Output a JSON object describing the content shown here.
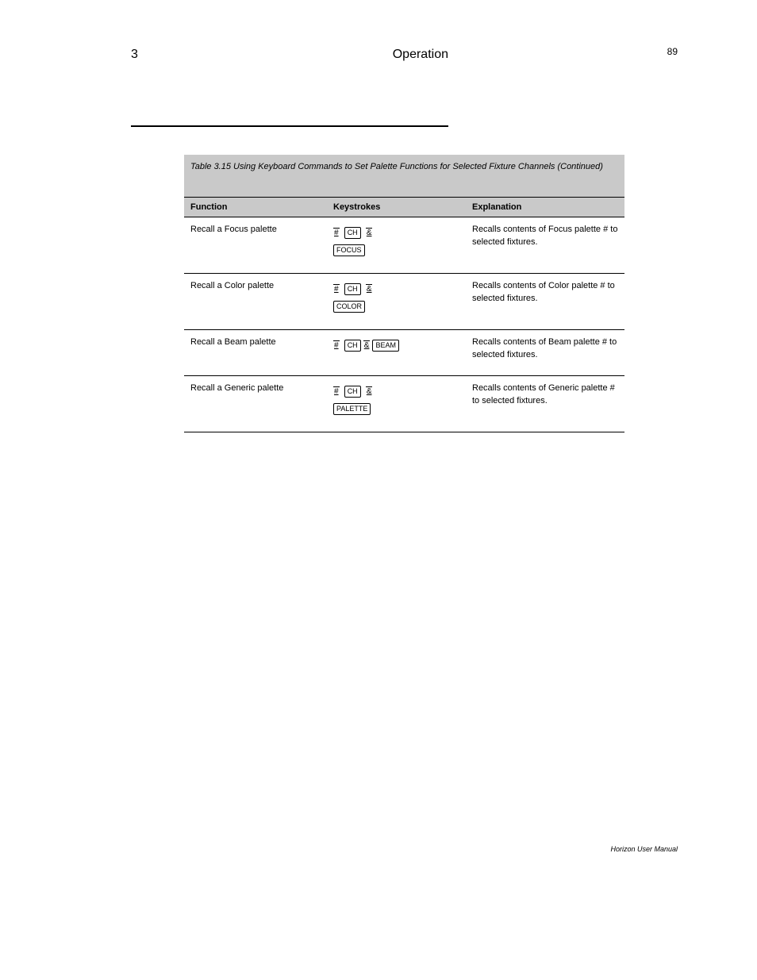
{
  "page": {
    "top_page_num": "89",
    "chapter_num": "3",
    "chapter_name": "Operation"
  },
  "table": {
    "caption": "Table 3.15  Using Keyboard Commands to Set Palette Functions for Selected Fixture Channels (Continued)",
    "columns": [
      "Function",
      "Keystrokes",
      "Explanation"
    ],
    "rows": [
      {
        "func": "Recall a Focus palette",
        "keys_html": "<span class='keyline'><span class='char'>#</span>&nbsp;&nbsp;<span class='key'>CH</span>&nbsp;&nbsp;<span class='char'>&amp;</span></span><br><span class='keyline'><span class='key'>FOCUS</span></span>",
        "exp": "Recalls contents of Focus palette # to selected fixtures."
      },
      {
        "func": "Recall a Color palette",
        "keys_html": "<span class='keyline'><span class='char'>#</span>&nbsp;&nbsp;<span class='key'>CH</span>&nbsp;&nbsp;<span class='char'>&amp;</span></span><br><span class='keyline'><span class='key'>COLOR</span></span>",
        "exp": "Recalls contents of Color palette # to selected fixtures."
      },
      {
        "func": "Recall a Beam palette",
        "keys_html": "<span class='keyline'><span class='char'>#</span>&nbsp;&nbsp;<span class='key'>CH</span>&nbsp;<span class='char'>&amp;</span>&nbsp;<span class='key'>BEAM</span></span>",
        "exp": "Recalls contents of Beam palette # to selected fixtures."
      },
      {
        "func": "Recall a Generic palette",
        "keys_html": "<span class='keyline'><span class='char'>#</span>&nbsp;&nbsp;<span class='key'>CH</span>&nbsp;&nbsp;<span class='char'>&amp;</span></span><br><span class='keyline'><span class='key'>PALETTE</span></span>",
        "exp": "Recalls contents of Generic palette # to selected fixtures."
      }
    ]
  },
  "footer": "Horizon User Manual"
}
